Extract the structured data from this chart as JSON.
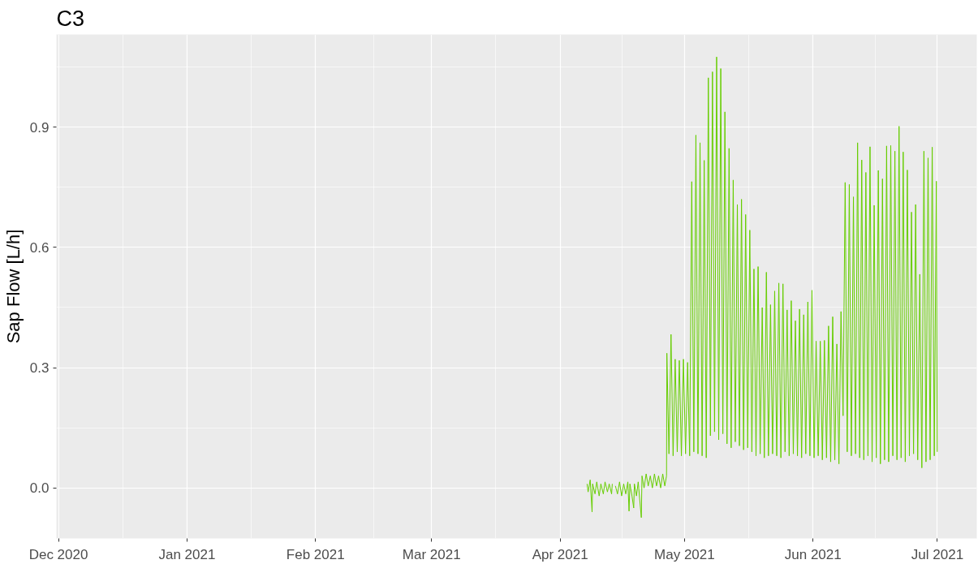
{
  "chart_data": {
    "type": "line",
    "title": "C3",
    "ylabel": "Sap Flow [L/h]",
    "xlim": [
      "2020-11-30T12:00",
      "2021-07-10T12:00"
    ],
    "xticks": [
      {
        "value": "2020-12-01",
        "label": "Dec 2020"
      },
      {
        "value": "2021-01-01",
        "label": "Jan 2021"
      },
      {
        "value": "2021-02-01",
        "label": "Feb 2021"
      },
      {
        "value": "2021-03-01",
        "label": "Mar 2021"
      },
      {
        "value": "2021-04-01",
        "label": "Apr 2021"
      },
      {
        "value": "2021-05-01",
        "label": "May 2021"
      },
      {
        "value": "2021-06-01",
        "label": "Jun 2021"
      },
      {
        "value": "2021-07-01",
        "label": "Jul 2021"
      }
    ],
    "ylim": [
      -0.126,
      1.131
    ],
    "yticks": [
      {
        "value": 0,
        "label": "0.0"
      },
      {
        "value": 0.3,
        "label": "0.3"
      },
      {
        "value": 0.6,
        "label": "0.6"
      },
      {
        "value": 0.9,
        "label": "0.9"
      }
    ],
    "grid": true,
    "line_style": "solid",
    "series": [
      {
        "color": "#66cd00",
        "x": [
          "2021-04-07T12:00",
          "2021-04-07T18:00",
          "2021-04-08T06:00",
          "2021-04-08T17:00",
          "2021-04-08T20:00",
          "2021-04-09T10:00",
          "2021-04-09T20:00",
          "2021-04-10T10:00",
          "2021-04-10T20:00",
          "2021-04-11T10:00",
          "2021-04-11T20:00",
          "2021-04-12T10:00",
          "2021-04-12T20:00",
          "2021-04-13T10:00",
          "2021-04-13T14:00",
          "2021-04-14T00:00",
          "2021-04-14T08:00",
          "2021-04-14T20:00",
          "2021-04-15T08:00",
          "2021-04-15T20:00",
          "2021-04-16T08:00",
          "2021-04-16T20:00",
          "2021-04-17T08:00",
          "2021-04-17T15:00",
          "2021-04-17T20:00",
          "2021-04-18T08:00",
          "2021-04-18T18:00",
          "2021-04-18T22:00",
          "2021-04-19T10:00",
          "2021-04-19T20:00",
          "2021-04-20T14:00",
          "2021-04-20T18:00",
          "2021-04-21T06:00",
          "2021-04-21T18:00",
          "2021-04-22T06:00",
          "2021-04-22T18:00",
          "2021-04-23T06:00",
          "2021-04-23T18:00",
          "2021-04-24T06:00",
          "2021-04-24T18:00",
          "2021-04-25T06:00",
          "2021-04-25T18:00",
          "2021-04-26T06:00",
          "2021-04-26T16:00",
          "2021-04-26T18:00",
          "2021-04-27T06:00",
          "2021-04-27T18:00",
          "2021-04-28T06:00",
          "2021-04-28T18:00",
          "2021-04-29T06:00",
          "2021-04-29T18:00",
          "2021-04-30T06:00",
          "2021-04-30T18:00",
          "2021-05-01T06:00",
          "2021-05-01T18:00",
          "2021-05-02T06:00",
          "2021-05-02T18:00",
          "2021-05-03T06:00",
          "2021-05-03T18:00",
          "2021-05-04T06:00",
          "2021-05-04T18:00",
          "2021-05-05T06:00",
          "2021-05-05T18:00",
          "2021-05-06T06:00",
          "2021-05-06T18:00",
          "2021-05-07T06:00",
          "2021-05-07T18:00",
          "2021-05-08T06:00",
          "2021-05-08T18:00",
          "2021-05-09T06:00",
          "2021-05-09T18:00",
          "2021-05-10T06:00",
          "2021-05-10T18:00",
          "2021-05-11T06:00",
          "2021-05-11T18:00",
          "2021-05-12T06:00",
          "2021-05-12T18:00",
          "2021-05-13T06:00",
          "2021-05-13T18:00",
          "2021-05-14T06:00",
          "2021-05-14T18:00",
          "2021-05-15T06:00",
          "2021-05-15T18:00",
          "2021-05-16T06:00",
          "2021-05-16T18:00",
          "2021-05-17T06:00",
          "2021-05-17T18:00",
          "2021-05-18T06:00",
          "2021-05-18T18:00",
          "2021-05-19T06:00",
          "2021-05-19T18:00",
          "2021-05-20T06:00",
          "2021-05-20T18:00",
          "2021-05-21T06:00",
          "2021-05-21T18:00",
          "2021-05-22T06:00",
          "2021-05-22T18:00",
          "2021-05-23T06:00",
          "2021-05-23T18:00",
          "2021-05-24T06:00",
          "2021-05-24T18:00",
          "2021-05-25T06:00",
          "2021-05-25T18:00",
          "2021-05-26T06:00",
          "2021-05-26T18:00",
          "2021-05-27T06:00",
          "2021-05-27T18:00",
          "2021-05-28T06:00",
          "2021-05-28T18:00",
          "2021-05-29T06:00",
          "2021-05-29T18:00",
          "2021-05-30T06:00",
          "2021-05-30T18:00",
          "2021-05-31T06:00",
          "2021-05-31T18:00",
          "2021-06-01T06:00",
          "2021-06-01T18:00",
          "2021-06-02T06:00",
          "2021-06-02T18:00",
          "2021-06-03T06:00",
          "2021-06-03T18:00",
          "2021-06-04T06:00",
          "2021-06-04T18:00",
          "2021-06-05T06:00",
          "2021-06-05T18:00",
          "2021-06-06T06:00",
          "2021-06-06T18:00",
          "2021-06-07T06:00",
          "2021-06-07T18:00",
          "2021-06-08T06:00",
          "2021-06-08T18:00",
          "2021-06-09T06:00",
          "2021-06-09T18:00",
          "2021-06-10T06:00",
          "2021-06-10T18:00",
          "2021-06-11T06:00",
          "2021-06-11T18:00",
          "2021-06-12T06:00",
          "2021-06-12T18:00",
          "2021-06-13T06:00",
          "2021-06-13T18:00",
          "2021-06-14T06:00",
          "2021-06-14T18:00",
          "2021-06-15T06:00",
          "2021-06-15T18:00",
          "2021-06-16T06:00",
          "2021-06-16T18:00",
          "2021-06-17T06:00",
          "2021-06-17T18:00",
          "2021-06-18T06:00",
          "2021-06-18T18:00",
          "2021-06-19T06:00",
          "2021-06-19T18:00",
          "2021-06-20T06:00",
          "2021-06-20T18:00",
          "2021-06-21T06:00",
          "2021-06-21T18:00",
          "2021-06-22T06:00",
          "2021-06-22T18:00",
          "2021-06-23T06:00",
          "2021-06-23T18:00",
          "2021-06-24T06:00",
          "2021-06-24T18:00",
          "2021-06-25T06:00",
          "2021-06-25T18:00",
          "2021-06-26T06:00",
          "2021-06-26T18:00",
          "2021-06-27T06:00",
          "2021-06-27T18:00",
          "2021-06-28T06:00",
          "2021-06-28T18:00",
          "2021-06-29T06:00",
          "2021-06-29T18:00",
          "2021-06-30T06:00",
          "2021-06-30T18:00",
          "2021-06-30T23:00"
        ],
        "values": [
          0.01,
          -0.01,
          0.02,
          -0.06,
          0.01,
          -0.015,
          0.015,
          -0.02,
          0.01,
          -0.015,
          0.015,
          -0.01,
          0.01,
          -0.015,
          0.01,
          null,
          0.005,
          -0.015,
          0.015,
          -0.02,
          0.01,
          -0.015,
          0.015,
          -0.058,
          0.01,
          -0.02,
          -0.05,
          0.01,
          -0.02,
          0.015,
          -0.074,
          0.03,
          0.0,
          0.035,
          0.005,
          0.03,
          0.0,
          0.035,
          0.005,
          0.03,
          0.0,
          0.035,
          0.005,
          0.03,
          0.336,
          0.085,
          0.383,
          0.08,
          0.321,
          0.09,
          0.318,
          0.08,
          0.321,
          0.085,
          0.313,
          0.08,
          0.764,
          0.09,
          0.88,
          0.085,
          0.861,
          0.08,
          0.817,
          0.075,
          1.023,
          0.13,
          1.038,
          0.14,
          1.075,
          0.12,
          1.046,
          0.135,
          0.938,
          0.11,
          0.847,
          0.1,
          0.768,
          0.115,
          0.707,
          0.105,
          0.72,
          0.095,
          0.682,
          0.1,
          0.643,
          0.09,
          0.546,
          0.08,
          0.552,
          0.085,
          0.45,
          0.075,
          0.538,
          0.08,
          0.457,
          0.085,
          0.491,
          0.08,
          0.511,
          0.075,
          0.509,
          0.09,
          0.444,
          0.08,
          0.467,
          0.085,
          0.417,
          0.08,
          0.446,
          0.075,
          0.432,
          0.085,
          0.464,
          0.08,
          0.493,
          0.075,
          0.366,
          0.08,
          0.366,
          0.07,
          0.368,
          0.075,
          0.404,
          0.065,
          0.427,
          0.07,
          0.359,
          0.06,
          0.44,
          0.18,
          0.762,
          0.09,
          0.757,
          0.08,
          0.726,
          0.085,
          0.861,
          0.075,
          0.818,
          0.07,
          0.787,
          0.08,
          0.851,
          0.065,
          0.705,
          0.075,
          0.792,
          0.06,
          0.771,
          0.07,
          0.853,
          0.065,
          0.854,
          0.08,
          0.84,
          0.07,
          0.902,
          0.075,
          0.838,
          0.065,
          0.793,
          0.08,
          0.688,
          0.085,
          0.707,
          0.07,
          0.533,
          0.05,
          0.84,
          0.065,
          0.823,
          0.07,
          0.85,
          0.08,
          0.765,
          0.09
        ]
      }
    ]
  }
}
